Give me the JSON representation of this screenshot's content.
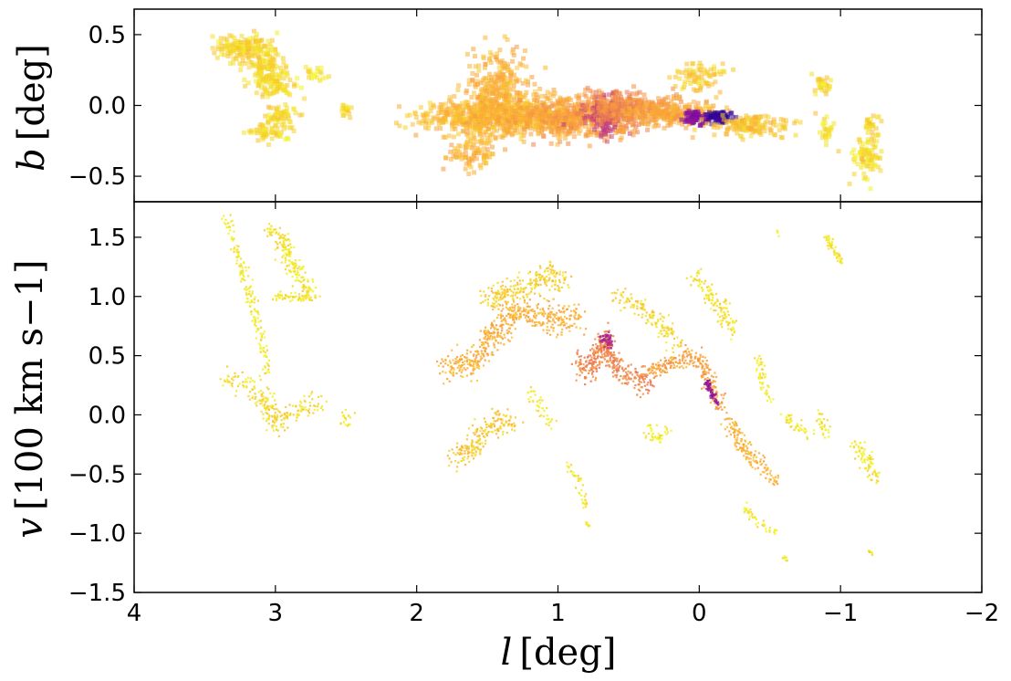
{
  "chart_data": [
    {
      "type": "scatter",
      "panel": "top",
      "xlabel": {
        "var": "l",
        "unit": "[deg]"
      },
      "ylabel": {
        "var": "b",
        "unit": "[deg]"
      },
      "xlim": [
        4,
        -2
      ],
      "ylim": [
        -0.68,
        0.68
      ],
      "x_ticks": [
        4,
        3,
        2,
        1,
        0,
        -1,
        -2
      ],
      "y_ticks": [
        -0.5,
        0.0,
        0.5
      ],
      "y_tick_labels": [
        "−0.5",
        "0.0",
        "0.5"
      ],
      "colormap": [
        "#f0f921",
        "#fca636",
        "#e16462",
        "#b12a90",
        "#6a00a8",
        "#0d0887"
      ],
      "clouds": [
        {
          "l": 3.22,
          "b": 0.4,
          "sl": 0.11,
          "sb": 0.05,
          "n": 170,
          "c": 0.06
        },
        {
          "l": 3.05,
          "b": 0.27,
          "sl": 0.06,
          "sb": 0.05,
          "n": 80,
          "c": 0.05
        },
        {
          "l": 3.0,
          "b": 0.15,
          "sl": 0.09,
          "sb": 0.04,
          "n": 90,
          "c": 0.05
        },
        {
          "l": 2.95,
          "b": -0.07,
          "sl": 0.06,
          "sb": 0.04,
          "n": 60,
          "c": 0.05
        },
        {
          "l": 3.05,
          "b": -0.19,
          "sl": 0.1,
          "sb": 0.03,
          "n": 60,
          "c": 0.04
        },
        {
          "l": 2.72,
          "b": 0.24,
          "sl": 0.04,
          "sb": 0.03,
          "n": 20,
          "c": 0.03
        },
        {
          "l": 2.5,
          "b": -0.03,
          "sl": 0.02,
          "sb": 0.03,
          "n": 20,
          "c": 0.05
        },
        {
          "l": 1.6,
          "b": -0.08,
          "sl": 0.2,
          "sb": 0.06,
          "n": 340,
          "c": 0.12
        },
        {
          "l": 1.42,
          "b": 0.1,
          "sl": 0.11,
          "sb": 0.13,
          "n": 300,
          "c": 0.15
        },
        {
          "l": 1.2,
          "b": -0.08,
          "sl": 0.25,
          "sb": 0.07,
          "n": 420,
          "c": 0.14
        },
        {
          "l": 1.62,
          "b": -0.33,
          "sl": 0.08,
          "sb": 0.07,
          "n": 100,
          "c": 0.14
        },
        {
          "l": 0.85,
          "b": -0.08,
          "sl": 0.22,
          "sb": 0.07,
          "n": 420,
          "c": 0.2
        },
        {
          "l": 0.66,
          "b": -0.08,
          "sl": 0.07,
          "sb": 0.06,
          "n": 150,
          "c": 0.52
        },
        {
          "l": 0.5,
          "b": -0.02,
          "sl": 0.15,
          "sb": 0.06,
          "n": 260,
          "c": 0.25
        },
        {
          "l": 0.2,
          "b": -0.05,
          "sl": 0.17,
          "sb": 0.04,
          "n": 260,
          "c": 0.17
        },
        {
          "l": 0.02,
          "b": -0.09,
          "sl": 0.04,
          "sb": 0.025,
          "n": 70,
          "c": 0.72
        },
        {
          "l": -0.14,
          "b": -0.08,
          "sl": 0.05,
          "sb": 0.02,
          "n": 80,
          "c": 0.92
        },
        {
          "l": -0.35,
          "b": -0.14,
          "sl": 0.14,
          "sb": 0.04,
          "n": 150,
          "c": 0.1
        },
        {
          "l": 0.0,
          "b": 0.2,
          "sl": 0.08,
          "sb": 0.06,
          "n": 80,
          "c": 0.08
        },
        {
          "l": -0.86,
          "b": 0.14,
          "sl": 0.04,
          "sb": 0.03,
          "n": 30,
          "c": 0.05
        },
        {
          "l": -0.9,
          "b": -0.18,
          "sl": 0.03,
          "sb": 0.04,
          "n": 25,
          "c": 0.04
        },
        {
          "l": -1.2,
          "b": -0.35,
          "sl": 0.06,
          "sb": 0.08,
          "n": 90,
          "c": 0.05
        },
        {
          "l": -1.22,
          "b": -0.12,
          "sl": 0.03,
          "sb": 0.03,
          "n": 25,
          "c": 0.05
        }
      ]
    },
    {
      "type": "scatter",
      "panel": "bottom",
      "xlabel": {
        "var": "l",
        "unit": "[deg]"
      },
      "ylabel": {
        "var": "v",
        "unit": "[100 km s−1]"
      },
      "xlim": [
        4,
        -2
      ],
      "ylim": [
        -1.5,
        1.8
      ],
      "x_ticks": [
        4,
        3,
        2,
        1,
        0,
        -1,
        -2
      ],
      "x_tick_labels": [
        "4",
        "3",
        "2",
        "1",
        "0",
        "−1",
        "−2"
      ],
      "y_ticks": [
        -1.5,
        -1.0,
        -0.5,
        0.0,
        0.5,
        1.0,
        1.5
      ],
      "y_tick_labels": [
        "−1.5",
        "−1.0",
        "−0.5",
        "0.0",
        "0.5",
        "1.0",
        "1.5"
      ],
      "colormap": [
        "#f0f921",
        "#fca636",
        "#e16462",
        "#b12a90",
        "#6a00a8",
        "#0d0887"
      ],
      "tracks": [
        {
          "pts": [
            [
              3.35,
              1.65
            ],
            [
              3.25,
              1.3
            ],
            [
              3.15,
              0.9
            ],
            [
              3.1,
              0.6
            ],
            [
              3.05,
              0.35
            ]
          ],
          "w": 0.03,
          "n": 160,
          "c": 0.04
        },
        {
          "pts": [
            [
              3.05,
              1.58
            ],
            [
              2.95,
              1.5
            ],
            [
              2.9,
              1.3
            ],
            [
              2.8,
              1.1
            ],
            [
              2.75,
              1.0
            ]
          ],
          "w": 0.04,
          "n": 180,
          "c": 0.06
        },
        {
          "pts": [
            [
              3.0,
              1.0
            ],
            [
              2.7,
              0.98
            ]
          ],
          "w": 0.02,
          "n": 60,
          "c": 0.05
        },
        {
          "pts": [
            [
              3.35,
              0.3
            ],
            [
              3.2,
              0.25
            ],
            [
              3.05,
              0.1
            ],
            [
              3.0,
              -0.08
            ],
            [
              2.9,
              0.0
            ],
            [
              2.8,
              0.08
            ],
            [
              2.7,
              0.08
            ]
          ],
          "w": 0.05,
          "n": 220,
          "c": 0.08
        },
        {
          "pts": [
            [
              2.52,
              0.0
            ],
            [
              2.48,
              -0.06
            ]
          ],
          "w": 0.03,
          "n": 20,
          "c": 0.05
        },
        {
          "pts": [
            [
              1.8,
              0.4
            ],
            [
              1.6,
              0.45
            ],
            [
              1.5,
              0.6
            ],
            [
              1.4,
              0.75
            ],
            [
              1.3,
              0.9
            ],
            [
              1.15,
              0.85
            ],
            [
              1.0,
              0.8
            ],
            [
              0.85,
              0.82
            ]
          ],
          "w": 0.06,
          "n": 520,
          "c": 0.18
        },
        {
          "pts": [
            [
              1.5,
              0.95
            ],
            [
              1.4,
              1.05
            ],
            [
              1.3,
              1.05
            ],
            [
              1.2,
              1.1
            ],
            [
              1.05,
              1.2
            ],
            [
              0.95,
              1.1
            ]
          ],
          "w": 0.05,
          "n": 240,
          "c": 0.1
        },
        {
          "pts": [
            [
              0.85,
              0.45
            ],
            [
              0.78,
              0.35
            ],
            [
              0.72,
              0.52
            ],
            [
              0.67,
              0.66
            ],
            [
              0.62,
              0.45
            ],
            [
              0.55,
              0.35
            ],
            [
              0.45,
              0.32
            ],
            [
              0.35,
              0.25
            ]
          ],
          "w": 0.05,
          "n": 380,
          "c": 0.3
        },
        {
          "pts": [
            [
              0.7,
              0.62
            ],
            [
              0.66,
              0.66
            ],
            [
              0.63,
              0.58
            ]
          ],
          "w": 0.02,
          "n": 50,
          "c": 0.62
        },
        {
          "pts": [
            [
              0.4,
              0.35
            ],
            [
              0.25,
              0.4
            ],
            [
              0.1,
              0.5
            ],
            [
              0.0,
              0.48
            ],
            [
              -0.05,
              0.35
            ],
            [
              -0.1,
              0.18
            ],
            [
              -0.15,
              0.08
            ]
          ],
          "w": 0.04,
          "n": 260,
          "c": 0.22
        },
        {
          "pts": [
            [
              -0.05,
              0.28
            ],
            [
              -0.1,
              0.16
            ],
            [
              -0.14,
              0.08
            ]
          ],
          "w": 0.015,
          "n": 60,
          "c": 0.68
        },
        {
          "pts": [
            [
              0.6,
              1.0
            ],
            [
              0.4,
              0.9
            ],
            [
              0.25,
              0.75
            ],
            [
              0.15,
              0.6
            ]
          ],
          "w": 0.04,
          "n": 140,
          "c": 0.08
        },
        {
          "pts": [
            [
              0.05,
              1.18
            ],
            [
              -0.05,
              1.05
            ],
            [
              -0.15,
              0.9
            ],
            [
              -0.25,
              0.7
            ]
          ],
          "w": 0.04,
          "n": 120,
          "c": 0.06
        },
        {
          "pts": [
            [
              1.75,
              -0.38
            ],
            [
              1.6,
              -0.28
            ],
            [
              1.5,
              -0.12
            ],
            [
              1.4,
              -0.05
            ],
            [
              1.3,
              -0.08
            ]
          ],
          "w": 0.05,
          "n": 200,
          "c": 0.12
        },
        {
          "pts": [
            [
              -0.2,
              -0.05
            ],
            [
              -0.3,
              -0.25
            ],
            [
              -0.4,
              -0.4
            ],
            [
              -0.55,
              -0.55
            ]
          ],
          "w": 0.04,
          "n": 150,
          "c": 0.18
        },
        {
          "pts": [
            [
              -0.4,
              0.5
            ],
            [
              -0.45,
              0.3
            ],
            [
              -0.5,
              0.1
            ]
          ],
          "w": 0.03,
          "n": 50,
          "c": 0.04
        },
        {
          "pts": [
            [
              -0.9,
              1.52
            ],
            [
              -0.95,
              1.4
            ],
            [
              -1.0,
              1.3
            ]
          ],
          "w": 0.02,
          "n": 50,
          "c": 0.05
        },
        {
          "pts": [
            [
              -1.1,
              -0.25
            ],
            [
              -1.2,
              -0.4
            ],
            [
              -1.25,
              -0.55
            ]
          ],
          "w": 0.04,
          "n": 80,
          "c": 0.06
        },
        {
          "pts": [
            [
              -0.6,
              0.0
            ],
            [
              -0.7,
              -0.1
            ],
            [
              -0.8,
              -0.15
            ]
          ],
          "w": 0.03,
          "n": 40,
          "c": 0.04
        },
        {
          "pts": [
            [
              -0.85,
              0.0
            ],
            [
              -0.9,
              -0.15
            ]
          ],
          "w": 0.03,
          "n": 30,
          "c": 0.04
        },
        {
          "pts": [
            [
              0.95,
              -0.4
            ],
            [
              0.85,
              -0.55
            ],
            [
              0.8,
              -0.8
            ]
          ],
          "w": 0.02,
          "n": 40,
          "c": 0.04
        },
        {
          "pts": [
            [
              0.8,
              -0.9
            ],
            [
              0.78,
              -0.95
            ]
          ],
          "w": 0.01,
          "n": 10,
          "c": 0.04
        },
        {
          "pts": [
            [
              -0.3,
              -0.75
            ],
            [
              -0.4,
              -0.9
            ],
            [
              -0.55,
              -1.0
            ]
          ],
          "w": 0.02,
          "n": 40,
          "c": 0.04
        },
        {
          "pts": [
            [
              0.4,
              -0.1
            ],
            [
              0.3,
              -0.2
            ],
            [
              0.2,
              -0.15
            ]
          ],
          "w": 0.03,
          "n": 40,
          "c": 0.04
        },
        {
          "pts": [
            [
              1.2,
              0.2
            ],
            [
              1.1,
              0.0
            ],
            [
              1.05,
              -0.1
            ]
          ],
          "w": 0.03,
          "n": 40,
          "c": 0.04
        },
        {
          "pts": [
            [
              -0.6,
              -1.2
            ],
            [
              -0.62,
              -1.23
            ]
          ],
          "w": 0.01,
          "n": 8,
          "c": 0.04
        },
        {
          "pts": [
            [
              -1.2,
              -1.15
            ],
            [
              -1.22,
              -1.18
            ]
          ],
          "w": 0.01,
          "n": 8,
          "c": 0.04
        },
        {
          "pts": [
            [
              -0.55,
              1.55
            ],
            [
              -0.57,
              1.52
            ]
          ],
          "w": 0.01,
          "n": 5,
          "c": 0.04
        }
      ]
    }
  ]
}
